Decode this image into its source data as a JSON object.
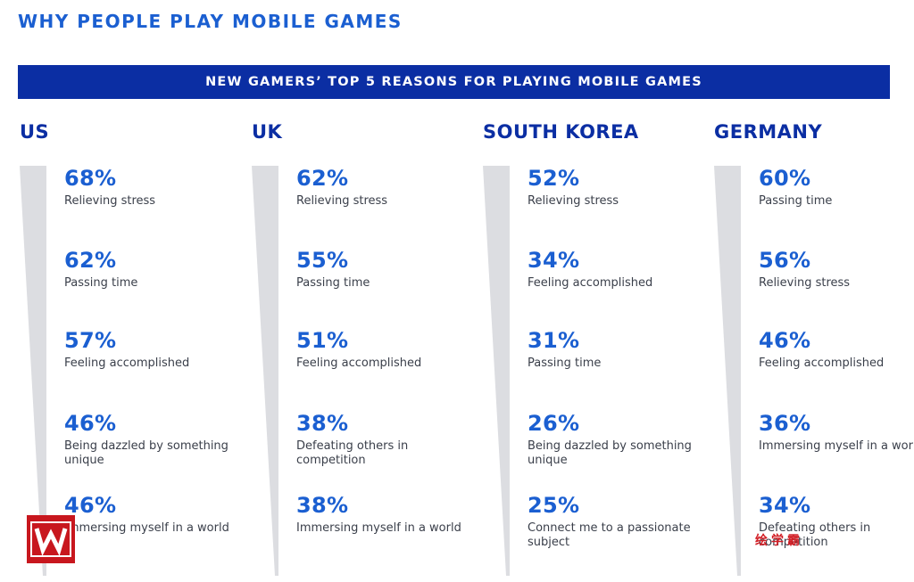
{
  "header": {
    "title": "WHY PEOPLE PLAY MOBILE GAMES",
    "banner": "NEW GAMERS’ TOP 5 REASONS FOR PLAYING MOBILE GAMES"
  },
  "colors": {
    "title": "#1b5fd1",
    "banner_bg": "#0b2ea3",
    "country": "#0b2ea3",
    "percent": "#1b5fd1",
    "label": "#3a3f4a",
    "wedge": "#dcdde1"
  },
  "chart_data": {
    "type": "table",
    "unit": "%",
    "columns": [
      {
        "country": "US",
        "reasons": [
          {
            "percent": "68%",
            "value": 68,
            "label": "Relieving stress"
          },
          {
            "percent": "62%",
            "value": 62,
            "label": "Passing time"
          },
          {
            "percent": "57%",
            "value": 57,
            "label": "Feeling accomplished"
          },
          {
            "percent": "46%",
            "value": 46,
            "label": "Being dazzled by something unique"
          },
          {
            "percent": "46%",
            "value": 46,
            "label": "Immersing myself in a world"
          }
        ]
      },
      {
        "country": "UK",
        "reasons": [
          {
            "percent": "62%",
            "value": 62,
            "label": "Relieving stress"
          },
          {
            "percent": "55%",
            "value": 55,
            "label": "Passing time"
          },
          {
            "percent": "51%",
            "value": 51,
            "label": "Feeling accomplished"
          },
          {
            "percent": "38%",
            "value": 38,
            "label": "Defeating others in competition"
          },
          {
            "percent": "38%",
            "value": 38,
            "label": "Immersing myself in a world"
          }
        ]
      },
      {
        "country": "SOUTH KOREA",
        "reasons": [
          {
            "percent": "52%",
            "value": 52,
            "label": "Relieving stress"
          },
          {
            "percent": "34%",
            "value": 34,
            "label": "Feeling accomplished"
          },
          {
            "percent": "31%",
            "value": 31,
            "label": "Passing time"
          },
          {
            "percent": "26%",
            "value": 26,
            "label": "Being dazzled by something unique"
          },
          {
            "percent": "25%",
            "value": 25,
            "label": "Connect me to a passionate subject"
          }
        ]
      },
      {
        "country": "GERMANY",
        "reasons": [
          {
            "percent": "60%",
            "value": 60,
            "label": "Passing time"
          },
          {
            "percent": "56%",
            "value": 56,
            "label": "Relieving stress"
          },
          {
            "percent": "46%",
            "value": 46,
            "label": "Feeling accomplished"
          },
          {
            "percent": "36%",
            "value": 36,
            "label": "Immersing myself in a world"
          },
          {
            "percent": "34%",
            "value": 34,
            "label": "Defeating others in competition"
          }
        ]
      }
    ]
  },
  "watermark": {
    "logo_icon": "w-logo-icon",
    "text": "绘学霸"
  }
}
